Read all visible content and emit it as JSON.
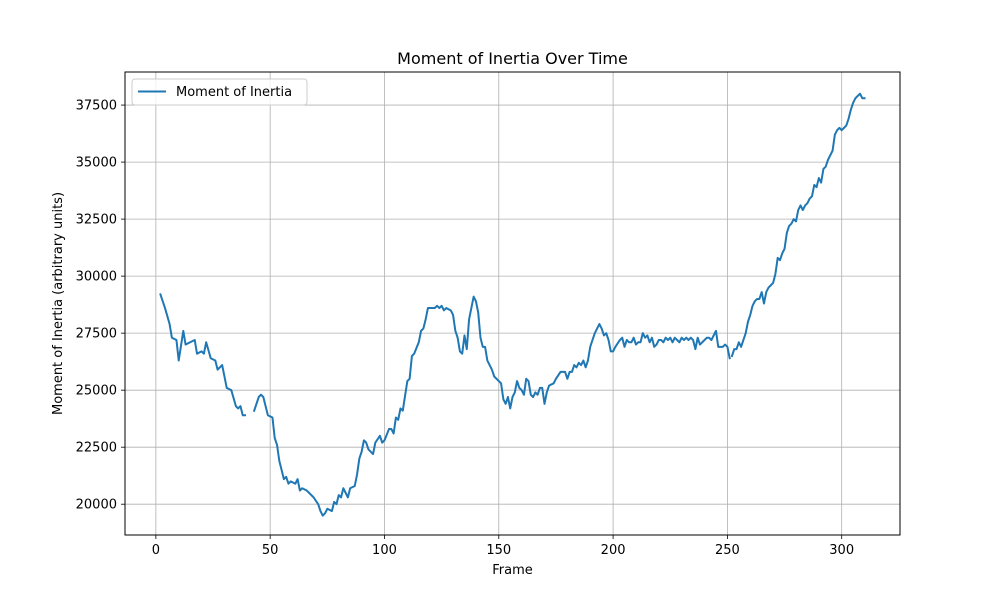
{
  "chart_data": {
    "type": "line",
    "title": "Moment of Inertia Over Time",
    "xlabel": "Frame",
    "ylabel": "Moment of Inertia (arbitrary units)",
    "xlim": [
      -13.5,
      325.5
    ],
    "ylim": [
      18650,
      38950
    ],
    "x_ticks": [
      0,
      50,
      100,
      150,
      200,
      250,
      300
    ],
    "y_ticks": [
      20000,
      22500,
      25000,
      27500,
      30000,
      32500,
      35000,
      37500
    ],
    "x_tick_labels": [
      "0",
      "50",
      "100",
      "150",
      "200",
      "250",
      "300"
    ],
    "y_tick_labels": [
      "20000",
      "22500",
      "25000",
      "27500",
      "30000",
      "32500",
      "35000",
      "37500"
    ],
    "grid": true,
    "legend_position": "upper-left",
    "color": "#1f77b4",
    "series": [
      {
        "name": "Moment of Inertia",
        "segments": [
          [
            [
              2,
              29200
            ],
            [
              4,
              28600
            ],
            [
              6,
              27900
            ],
            [
              7,
              27300
            ],
            [
              9,
              27200
            ],
            [
              10,
              26300
            ],
            [
              12,
              27600
            ],
            [
              13,
              27000
            ],
            [
              15,
              27100
            ],
            [
              17,
              27200
            ],
            [
              18,
              26600
            ],
            [
              20,
              26700
            ],
            [
              21,
              26600
            ],
            [
              22,
              27100
            ],
            [
              24,
              26400
            ],
            [
              26,
              26300
            ],
            [
              27,
              25900
            ],
            [
              29,
              26100
            ],
            [
              30,
              25600
            ],
            [
              31,
              25100
            ],
            [
              33,
              25000
            ],
            [
              35,
              24300
            ],
            [
              36,
              24200
            ],
            [
              37,
              24300
            ],
            [
              38,
              23900
            ],
            [
              39,
              23900
            ]
          ],
          [
            [
              43,
              24100
            ],
            [
              45,
              24700
            ],
            [
              46,
              24800
            ],
            [
              47,
              24700
            ],
            [
              49,
              23900
            ],
            [
              51,
              23800
            ],
            [
              52,
              22900
            ],
            [
              53,
              22600
            ],
            [
              54,
              21900
            ],
            [
              56,
              21100
            ],
            [
              57,
              21200
            ],
            [
              58,
              20900
            ],
            [
              59,
              21000
            ],
            [
              61,
              20900
            ],
            [
              62,
              21100
            ],
            [
              63,
              20600
            ],
            [
              64,
              20700
            ],
            [
              66,
              20600
            ],
            [
              67,
              20500
            ],
            [
              69,
              20300
            ],
            [
              71,
              20000
            ],
            [
              72,
              19700
            ],
            [
              73,
              19500
            ],
            [
              74,
              19600
            ],
            [
              75,
              19800
            ],
            [
              77,
              19700
            ],
            [
              78,
              20100
            ],
            [
              79,
              20000
            ],
            [
              80,
              20400
            ],
            [
              81,
              20300
            ],
            [
              82,
              20700
            ],
            [
              84,
              20300
            ],
            [
              85,
              20700
            ],
            [
              87,
              20800
            ],
            [
              88,
              21300
            ],
            [
              89,
              22000
            ],
            [
              90,
              22300
            ],
            [
              91,
              22800
            ],
            [
              92,
              22700
            ],
            [
              93,
              22400
            ],
            [
              95,
              22200
            ],
            [
              96,
              22700
            ],
            [
              98,
              23000
            ],
            [
              99,
              22700
            ],
            [
              100,
              22800
            ],
            [
              102,
              23300
            ],
            [
              103,
              23300
            ],
            [
              104,
              23100
            ],
            [
              105,
              23800
            ],
            [
              106,
              23700
            ],
            [
              107,
              24200
            ],
            [
              108,
              24100
            ],
            [
              110,
              25400
            ],
            [
              111,
              25500
            ],
            [
              112,
              26500
            ],
            [
              113,
              26600
            ],
            [
              115,
              27100
            ],
            [
              116,
              27600
            ],
            [
              117,
              27700
            ],
            [
              118,
              28100
            ],
            [
              119,
              28600
            ],
            [
              120,
              28600
            ],
            [
              122,
              28600
            ],
            [
              123,
              28700
            ],
            [
              124,
              28600
            ],
            [
              125,
              28700
            ],
            [
              126,
              28500
            ],
            [
              127,
              28600
            ],
            [
              129,
              28500
            ],
            [
              130,
              28300
            ],
            [
              131,
              27600
            ],
            [
              132,
              27300
            ],
            [
              133,
              26700
            ],
            [
              134,
              26600
            ],
            [
              135,
              27400
            ],
            [
              136,
              26800
            ],
            [
              137,
              28100
            ],
            [
              138,
              28600
            ],
            [
              139,
              29100
            ],
            [
              140,
              28900
            ],
            [
              141,
              28400
            ],
            [
              142,
              27300
            ],
            [
              143,
              26900
            ],
            [
              144,
              26900
            ],
            [
              145,
              26300
            ],
            [
              146,
              26100
            ],
            [
              147,
              25900
            ],
            [
              148,
              25600
            ],
            [
              150,
              25400
            ],
            [
              151,
              25300
            ],
            [
              152,
              24600
            ],
            [
              153,
              24400
            ],
            [
              154,
              24700
            ],
            [
              155,
              24200
            ],
            [
              156,
              24700
            ],
            [
              157,
              24900
            ],
            [
              158,
              25400
            ],
            [
              159,
              25100
            ],
            [
              160,
              25000
            ],
            [
              161,
              24800
            ],
            [
              162,
              25500
            ],
            [
              163,
              25400
            ],
            [
              164,
              24800
            ],
            [
              165,
              24700
            ],
            [
              166,
              24900
            ],
            [
              167,
              24800
            ],
            [
              168,
              25100
            ],
            [
              169,
              25100
            ],
            [
              170,
              24400
            ],
            [
              171,
              24900
            ],
            [
              172,
              25200
            ],
            [
              174,
              25300
            ],
            [
              175,
              25500
            ],
            [
              177,
              25800
            ],
            [
              179,
              25800
            ],
            [
              180,
              25500
            ],
            [
              181,
              25800
            ],
            [
              182,
              25800
            ],
            [
              183,
              26100
            ],
            [
              184,
              26000
            ],
            [
              185,
              26200
            ],
            [
              186,
              26100
            ],
            [
              187,
              26300
            ],
            [
              188,
              26000
            ],
            [
              189,
              26300
            ],
            [
              190,
              26900
            ],
            [
              191,
              27200
            ],
            [
              192,
              27500
            ],
            [
              193,
              27700
            ],
            [
              194,
              27900
            ],
            [
              195,
              27700
            ],
            [
              196,
              27400
            ],
            [
              197,
              27500
            ],
            [
              198,
              27200
            ],
            [
              199,
              26700
            ],
            [
              200,
              26700
            ],
            [
              201,
              26900
            ],
            [
              203,
              27200
            ],
            [
              204,
              27300
            ],
            [
              205,
              26900
            ],
            [
              206,
              27200
            ],
            [
              207,
              27100
            ],
            [
              208,
              27100
            ],
            [
              209,
              27300
            ],
            [
              210,
              27000
            ],
            [
              211,
              27100
            ],
            [
              212,
              27100
            ],
            [
              213,
              27500
            ],
            [
              214,
              27300
            ],
            [
              215,
              27400
            ],
            [
              216,
              27100
            ],
            [
              217,
              27300
            ],
            [
              218,
              26900
            ],
            [
              219,
              27000
            ],
            [
              220,
              27200
            ],
            [
              221,
              27200
            ],
            [
              222,
              27100
            ],
            [
              223,
              27300
            ],
            [
              224,
              27200
            ],
            [
              225,
              27300
            ],
            [
              226,
              27100
            ],
            [
              227,
              27300
            ],
            [
              228,
              27200
            ],
            [
              229,
              27100
            ],
            [
              230,
              27300
            ],
            [
              231,
              27200
            ],
            [
              232,
              27300
            ],
            [
              233,
              27200
            ],
            [
              234,
              27300
            ],
            [
              235,
              27200
            ],
            [
              236,
              26800
            ],
            [
              237,
              27300
            ],
            [
              238,
              27000
            ],
            [
              239,
              27100
            ],
            [
              240,
              27200
            ],
            [
              241,
              27300
            ],
            [
              242,
              27300
            ],
            [
              243,
              27200
            ],
            [
              244,
              27400
            ],
            [
              245,
              27600
            ],
            [
              246,
              26900
            ],
            [
              247,
              26900
            ],
            [
              248,
              26900
            ],
            [
              249,
              27000
            ],
            [
              250,
              26900
            ],
            [
              251,
              26400
            ]
          ],
          [
            [
              252,
              26500
            ],
            [
              253,
              26800
            ],
            [
              254,
              26800
            ],
            [
              255,
              27100
            ],
            [
              256,
              26900
            ],
            [
              257,
              27200
            ],
            [
              258,
              27500
            ],
            [
              259,
              28000
            ],
            [
              260,
              28300
            ],
            [
              261,
              28700
            ],
            [
              262,
              28900
            ],
            [
              263,
              29000
            ],
            [
              264,
              29000
            ],
            [
              265,
              29300
            ],
            [
              266,
              28800
            ],
            [
              267,
              29300
            ],
            [
              268,
              29500
            ],
            [
              269,
              29600
            ],
            [
              270,
              29700
            ],
            [
              271,
              30100
            ],
            [
              272,
              30800
            ],
            [
              273,
              30700
            ],
            [
              274,
              31000
            ],
            [
              275,
              31200
            ],
            [
              276,
              31900
            ],
            [
              277,
              32200
            ],
            [
              278,
              32300
            ],
            [
              279,
              32500
            ],
            [
              280,
              32400
            ],
            [
              281,
              32900
            ],
            [
              282,
              33100
            ],
            [
              283,
              32900
            ],
            [
              284,
              33100
            ],
            [
              285,
              33200
            ],
            [
              286,
              33400
            ],
            [
              287,
              33500
            ],
            [
              288,
              34000
            ],
            [
              289,
              33900
            ],
            [
              290,
              34300
            ],
            [
              291,
              34100
            ],
            [
              292,
              34700
            ],
            [
              293,
              34800
            ],
            [
              294,
              35100
            ],
            [
              295,
              35300
            ],
            [
              296,
              35500
            ],
            [
              297,
              36200
            ],
            [
              298,
              36400
            ],
            [
              299,
              36500
            ],
            [
              300,
              36400
            ],
            [
              301,
              36500
            ],
            [
              302,
              36600
            ],
            [
              303,
              36900
            ],
            [
              304,
              37300
            ],
            [
              305,
              37600
            ],
            [
              306,
              37800
            ],
            [
              307,
              37900
            ],
            [
              308,
              38000
            ],
            [
              309,
              37800
            ],
            [
              310,
              37800
            ]
          ]
        ]
      }
    ]
  }
}
